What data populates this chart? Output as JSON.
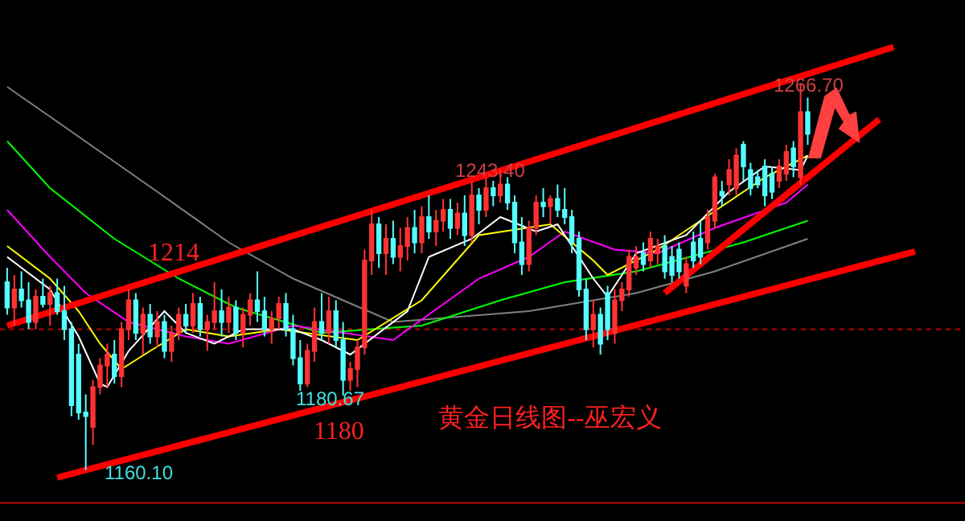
{
  "chart_data": {
    "type": "candlestick",
    "title": "黄金日线图--巫宏义",
    "categories": [
      null,
      null,
      null,
      null,
      null,
      null,
      null,
      null,
      null,
      null,
      null,
      null,
      null,
      null,
      null,
      null,
      null,
      null,
      null,
      null,
      null,
      null,
      null,
      null,
      null,
      null,
      null,
      null,
      null,
      null,
      null,
      null,
      null,
      null,
      null,
      null,
      null,
      null,
      null,
      null,
      null,
      null,
      null,
      null,
      null,
      null,
      null,
      null,
      null,
      null,
      null,
      null,
      null,
      null,
      null,
      null,
      null,
      null,
      null,
      null,
      null,
      null,
      null,
      null,
      null,
      null,
      null,
      null,
      null,
      null,
      null,
      null,
      null,
      null,
      null,
      null,
      null,
      null,
      null,
      null,
      null,
      null,
      null,
      null,
      null,
      null,
      null,
      null,
      null,
      null,
      null,
      null,
      null,
      null,
      null,
      null,
      null,
      null,
      null,
      null,
      null,
      null,
      null,
      null,
      null,
      null,
      null,
      null,
      null,
      null,
      null,
      null,
      null,
      null,
      null,
      null,
      null,
      null,
      null,
      null,
      null,
      null,
      null,
      null,
      null,
      null,
      null,
      null
    ],
    "ohlc": [
      [
        1212,
        1216,
        1203,
        1205
      ],
      [
        1205,
        1214,
        1200,
        1210
      ],
      [
        1210,
        1215,
        1205,
        1207
      ],
      [
        1207,
        1212,
        1199,
        1201
      ],
      [
        1201,
        1210,
        1199,
        1208
      ],
      [
        1208,
        1213,
        1205,
        1206
      ],
      [
        1206,
        1211,
        1200,
        1209
      ],
      [
        1209,
        1213,
        1203,
        1204
      ],
      [
        1204,
        1211,
        1196,
        1199
      ],
      [
        1199,
        1201,
        1175,
        1178
      ],
      [
        1192,
        1195,
        1174,
        1176
      ],
      [
        1176,
        1181,
        1160.1,
        1175
      ],
      [
        1172,
        1185,
        1167,
        1183
      ],
      [
        1183,
        1191,
        1181,
        1189
      ],
      [
        1189,
        1195,
        1183,
        1192
      ],
      [
        1192,
        1196,
        1184,
        1186
      ],
      [
        1186,
        1201,
        1183,
        1199
      ],
      [
        1199,
        1210,
        1196,
        1207
      ],
      [
        1207,
        1209,
        1196,
        1198
      ],
      [
        1198,
        1205,
        1192,
        1203
      ],
      [
        1203,
        1206,
        1195,
        1197
      ],
      [
        1197,
        1204,
        1194,
        1201
      ],
      [
        1201,
        1203,
        1191,
        1193
      ],
      [
        1193,
        1200,
        1190,
        1198
      ],
      [
        1198,
        1205,
        1196,
        1203
      ],
      [
        1203,
        1206,
        1198,
        1200
      ],
      [
        1200,
        1209,
        1198,
        1206
      ],
      [
        1206,
        1208,
        1197,
        1199
      ],
      [
        1199,
        1203,
        1193,
        1201
      ],
      [
        1201,
        1212,
        1199,
        1204
      ],
      [
        1204,
        1210,
        1197,
        1201
      ],
      [
        1201,
        1208,
        1198,
        1205
      ],
      [
        1205,
        1207,
        1196,
        1198
      ],
      [
        1198,
        1205,
        1194,
        1203
      ],
      [
        1203,
        1209,
        1200,
        1207
      ],
      [
        1207,
        1215,
        1201,
        1204
      ],
      [
        1204,
        1208,
        1197,
        1199
      ],
      [
        1199,
        1204,
        1195,
        1202
      ],
      [
        1202,
        1208,
        1199,
        1206
      ],
      [
        1206,
        1209,
        1197,
        1199
      ],
      [
        1199,
        1203,
        1189,
        1191
      ],
      [
        1191,
        1196,
        1182,
        1184
      ],
      [
        1184,
        1195,
        1183,
        1193
      ],
      [
        1193,
        1205,
        1190,
        1201
      ],
      [
        1201,
        1209,
        1196,
        1198
      ],
      [
        1198,
        1208,
        1195,
        1204
      ],
      [
        1204,
        1207,
        1194,
        1196
      ],
      [
        1196,
        1201,
        1180.67,
        1185
      ],
      [
        1185,
        1190,
        1182,
        1188
      ],
      [
        1188,
        1196,
        1183,
        1194
      ],
      [
        1194,
        1221,
        1192,
        1218
      ],
      [
        1218,
        1232,
        1214,
        1228
      ],
      [
        1228,
        1230,
        1216,
        1220
      ],
      [
        1220,
        1228,
        1214,
        1224
      ],
      [
        1224,
        1229,
        1217,
        1219
      ],
      [
        1219,
        1227,
        1215,
        1222
      ],
      [
        1222,
        1230,
        1218,
        1227
      ],
      [
        1227,
        1232,
        1220,
        1223
      ],
      [
        1223,
        1233,
        1220,
        1230
      ],
      [
        1230,
        1236,
        1224,
        1226
      ],
      [
        1226,
        1232,
        1222,
        1229
      ],
      [
        1229,
        1235,
        1226,
        1232
      ],
      [
        1232,
        1235,
        1224,
        1227
      ],
      [
        1227,
        1234,
        1225,
        1231
      ],
      [
        1231,
        1236,
        1222,
        1225
      ],
      [
        1225,
        1240,
        1223,
        1236
      ],
      [
        1236,
        1238,
        1228,
        1232
      ],
      [
        1232,
        1241,
        1230,
        1238
      ],
      [
        1238,
        1240,
        1233,
        1236
      ],
      [
        1236,
        1243.4,
        1234,
        1239
      ],
      [
        1239,
        1241,
        1232,
        1234
      ],
      [
        1234,
        1236,
        1220,
        1223
      ],
      [
        1223,
        1230,
        1214,
        1217
      ],
      [
        1217,
        1229,
        1215,
        1227
      ],
      [
        1227,
        1236,
        1225,
        1234
      ],
      [
        1234,
        1238,
        1230,
        1233
      ],
      [
        1233,
        1236,
        1228,
        1235
      ],
      [
        1235,
        1239,
        1230,
        1232
      ],
      [
        1232,
        1238,
        1228,
        1230
      ],
      [
        1230,
        1232,
        1220,
        1223
      ],
      [
        1224,
        1226,
        1208,
        1210
      ],
      [
        1210,
        1213,
        1196,
        1199
      ],
      [
        1199,
        1207,
        1194,
        1203
      ],
      [
        1203,
        1205,
        1192,
        1195
      ],
      [
        1209,
        1211,
        1196,
        1199
      ],
      [
        1198,
        1210,
        1195,
        1207
      ],
      [
        1207,
        1212,
        1204,
        1210
      ],
      [
        1210,
        1221,
        1208,
        1219
      ],
      [
        1216,
        1222,
        1214,
        1219
      ],
      [
        1220,
        1223,
        1215,
        1217
      ],
      [
        1218,
        1226,
        1216,
        1224
      ],
      [
        1220,
        1224,
        1217,
        1222
      ],
      [
        1222,
        1225,
        1213,
        1215
      ],
      [
        1219,
        1222,
        1212,
        1214
      ],
      [
        1221,
        1223,
        1213,
        1215
      ],
      [
        1211,
        1219,
        1209,
        1217
      ],
      [
        1223,
        1226,
        1216,
        1218
      ],
      [
        1224,
        1229,
        1217,
        1219
      ],
      [
        1223,
        1232,
        1221,
        1230
      ],
      [
        1229,
        1242,
        1227,
        1241
      ],
      [
        1237,
        1240,
        1233,
        1236
      ],
      [
        1239,
        1246,
        1236,
        1243
      ],
      [
        1238,
        1249,
        1236,
        1247
      ],
      [
        1250,
        1251,
        1240,
        1244
      ],
      [
        1243,
        1245,
        1236,
        1238
      ],
      [
        1241,
        1243,
        1238,
        1239
      ],
      [
        1244,
        1246,
        1233,
        1236
      ],
      [
        1242,
        1244,
        1235,
        1237
      ],
      [
        1240,
        1246,
        1238,
        1244
      ],
      [
        1242,
        1250,
        1240,
        1248
      ],
      [
        1249,
        1251,
        1241,
        1244
      ],
      [
        1241,
        1266.7,
        1239,
        1259
      ],
      [
        1259,
        1263,
        1250,
        1253
      ],
      null,
      null,
      null,
      null,
      null,
      null,
      null,
      null,
      null,
      null,
      null,
      null,
      null,
      null,
      null
    ],
    "series": [
      {
        "type": "line",
        "color": "#808080",
        "values": [
          1266,
          null,
          null,
          null,
          null,
          null,
          null,
          null,
          1255,
          null,
          null,
          null,
          null,
          null,
          null,
          null,
          null,
          null,
          null,
          null,
          null,
          1237,
          null,
          null,
          null,
          null,
          null,
          null,
          null,
          null,
          null,
          1223,
          null,
          null,
          null,
          null,
          null,
          null,
          null,
          null,
          1213,
          null,
          null,
          null,
          null,
          null,
          null,
          null,
          null,
          null,
          null,
          null,
          null,
          null,
          1201,
          null,
          null,
          null,
          null,
          null,
          null,
          null,
          null,
          null,
          null,
          null,
          null,
          null,
          null,
          null,
          null,
          null,
          null,
          1204,
          null,
          null,
          null,
          null,
          null,
          1206,
          null,
          null,
          null,
          null,
          null,
          null,
          null,
          null,
          1209,
          null,
          null,
          null,
          null,
          null,
          null,
          null,
          null,
          null,
          null,
          1215,
          null,
          null,
          null,
          null,
          null,
          null,
          null,
          null,
          null,
          null,
          null,
          null,
          1224,
          null,
          null,
          null,
          null,
          null,
          null,
          null,
          null,
          null,
          null,
          null,
          null,
          null,
          null,
          null
        ]
      },
      {
        "type": "line",
        "color": "#00ff00",
        "values": [
          1251,
          null,
          null,
          null,
          null,
          null,
          1238,
          null,
          null,
          null,
          null,
          null,
          null,
          null,
          null,
          1224,
          null,
          null,
          null,
          null,
          null,
          null,
          null,
          null,
          1213,
          null,
          null,
          null,
          null,
          null,
          null,
          null,
          1205,
          null,
          null,
          null,
          null,
          null,
          null,
          null,
          null,
          null,
          null,
          null,
          1198,
          null,
          null,
          null,
          null,
          null,
          null,
          null,
          null,
          null,
          null,
          null,
          null,
          null,
          1200,
          null,
          null,
          null,
          null,
          null,
          null,
          null,
          null,
          null,
          null,
          1207,
          null,
          null,
          null,
          null,
          null,
          null,
          null,
          null,
          1212,
          null,
          null,
          null,
          null,
          null,
          null,
          null,
          null,
          null,
          1215,
          null,
          null,
          null,
          null,
          null,
          null,
          null,
          null,
          null,
          null,
          null,
          null,
          null,
          null,
          1223,
          null,
          null,
          null,
          null,
          null,
          null,
          null,
          null,
          1229,
          null,
          null,
          null,
          null,
          null,
          null,
          null,
          null,
          null,
          null,
          null,
          null,
          null,
          null,
          null
        ]
      },
      {
        "type": "line",
        "color": "#ff00ff",
        "values": [
          1232,
          null,
          null,
          null,
          null,
          null,
          1219,
          null,
          null,
          null,
          null,
          1209,
          null,
          null,
          null,
          null,
          null,
          1201,
          null,
          null,
          null,
          null,
          null,
          null,
          null,
          1197,
          null,
          null,
          null,
          null,
          null,
          1195,
          null,
          null,
          null,
          null,
          null,
          null,
          null,
          null,
          1200,
          null,
          null,
          null,
          null,
          null,
          null,
          null,
          null,
          null,
          null,
          null,
          null,
          null,
          1196,
          null,
          null,
          null,
          null,
          null,
          null,
          null,
          null,
          null,
          null,
          null,
          1213,
          null,
          null,
          null,
          null,
          null,
          null,
          1219,
          null,
          null,
          null,
          null,
          1226,
          null,
          null,
          null,
          null,
          null,
          null,
          1221,
          null,
          null,
          null,
          null,
          null,
          1220,
          null,
          null,
          null,
          null,
          null,
          null,
          null,
          1227,
          null,
          null,
          null,
          null,
          null,
          null,
          null,
          null,
          null,
          1234,
          null,
          null,
          1239,
          null,
          null,
          null,
          null,
          null,
          null,
          null,
          null,
          null,
          null,
          null,
          null,
          null,
          null,
          null
        ]
      },
      {
        "type": "line",
        "color": "#ffff00",
        "values": [
          1222,
          null,
          null,
          null,
          null,
          null,
          1213,
          null,
          null,
          null,
          1204,
          null,
          null,
          1195,
          null,
          null,
          1188,
          null,
          null,
          null,
          1193,
          null,
          null,
          null,
          null,
          1199,
          null,
          null,
          null,
          null,
          null,
          1197,
          null,
          null,
          null,
          null,
          null,
          null,
          1199,
          null,
          null,
          null,
          null,
          null,
          null,
          null,
          null,
          null,
          null,
          1196,
          null,
          null,
          null,
          null,
          null,
          null,
          null,
          null,
          1207,
          null,
          null,
          null,
          null,
          null,
          null,
          null,
          1225,
          null,
          null,
          null,
          null,
          null,
          null,
          null,
          null,
          null,
          1228,
          null,
          null,
          null,
          null,
          null,
          1218,
          null,
          1214,
          null,
          null,
          null,
          null,
          null,
          null,
          1221,
          null,
          null,
          null,
          null,
          null,
          null,
          null,
          null,
          1233,
          null,
          null,
          null,
          null,
          null,
          1241,
          null,
          null,
          null,
          null,
          null,
          1247,
          null,
          null,
          null,
          null,
          null,
          null,
          null,
          null,
          null,
          null,
          null,
          null,
          null,
          null,
          null
        ]
      },
      {
        "type": "line",
        "color": "#ffffff",
        "values": [
          1219,
          null,
          null,
          null,
          null,
          null,
          1210,
          null,
          null,
          null,
          1197,
          null,
          null,
          1184,
          1183,
          null,
          null,
          1193,
          null,
          null,
          null,
          null,
          1204,
          null,
          null,
          1198,
          null,
          null,
          null,
          1195,
          null,
          null,
          null,
          1199,
          null,
          null,
          null,
          null,
          null,
          null,
          1199,
          null,
          null,
          null,
          1196,
          null,
          null,
          null,
          1192,
          null,
          null,
          null,
          null,
          null,
          null,
          null,
          1204,
          null,
          null,
          1219,
          null,
          null,
          null,
          null,
          null,
          1224,
          null,
          null,
          null,
          1230,
          null,
          null,
          null,
          null,
          1226,
          null,
          null,
          1228,
          null,
          null,
          null,
          null,
          1213,
          null,
          1208,
          null,
          null,
          null,
          1220,
          null,
          null,
          null,
          null,
          null,
          null,
          1225,
          null,
          null,
          null,
          null,
          null,
          1237,
          null,
          null,
          null,
          null,
          1244,
          null,
          null,
          null,
          null,
          1243,
          1247,
          null,
          null,
          null,
          null,
          null,
          null,
          null,
          null,
          null,
          null,
          null,
          null,
          null,
          null,
          null
        ]
      },
      {
        "type": "line",
        "color": "#ff0000",
        "values": [
          1200,
          null,
          null,
          null,
          null,
          null,
          null,
          null,
          null,
          null,
          null,
          null,
          null,
          null,
          null,
          null,
          null,
          null,
          null,
          null,
          null,
          null,
          null,
          null,
          null,
          null,
          null,
          null,
          null,
          null,
          null,
          null,
          null,
          null,
          null,
          null,
          null,
          null,
          null,
          null,
          null,
          null,
          null,
          null,
          null,
          null,
          null,
          null,
          null,
          null,
          null,
          null,
          null,
          null,
          null,
          null,
          null,
          null,
          null,
          null,
          null,
          null,
          null,
          null,
          null,
          null,
          null,
          null,
          null,
          null,
          null,
          null,
          null,
          null,
          null,
          null,
          null,
          null,
          null,
          null,
          null,
          null,
          null,
          null,
          null,
          null,
          null,
          null,
          null,
          null,
          null,
          null,
          null,
          null,
          null,
          null,
          null,
          null,
          null,
          null,
          null,
          null,
          null,
          null,
          null,
          null,
          null,
          null,
          null,
          null,
          null,
          null,
          null,
          null,
          null,
          null,
          null,
          null,
          null,
          null,
          null,
          null,
          null,
          null,
          1277,
          null,
          null,
          null
        ]
      },
      {
        "type": "line",
        "color": "#ff0000",
        "values": [
          null,
          null,
          null,
          null,
          null,
          null,
          null,
          1158,
          null,
          null,
          null,
          null,
          null,
          null,
          null,
          null,
          null,
          null,
          null,
          null,
          null,
          null,
          null,
          null,
          null,
          null,
          null,
          null,
          null,
          null,
          null,
          null,
          null,
          null,
          null,
          null,
          null,
          null,
          null,
          null,
          null,
          null,
          null,
          null,
          null,
          null,
          null,
          null,
          null,
          null,
          null,
          null,
          null,
          null,
          null,
          null,
          null,
          null,
          null,
          null,
          null,
          null,
          null,
          null,
          null,
          null,
          null,
          null,
          null,
          null,
          null,
          null,
          null,
          null,
          null,
          null,
          null,
          null,
          null,
          null,
          null,
          null,
          null,
          null,
          null,
          null,
          null,
          null,
          null,
          null,
          null,
          null,
          null,
          null,
          null,
          null,
          null,
          null,
          null,
          null,
          null,
          null,
          null,
          null,
          null,
          null,
          null,
          null,
          null,
          null,
          null,
          null,
          null,
          null,
          null,
          null,
          null,
          null,
          null,
          null,
          null,
          null,
          null,
          null,
          null,
          null,
          null,
          1220.5
        ]
      },
      {
        "type": "line",
        "color": "#ff0000",
        "values": [
          null,
          null,
          null,
          null,
          null,
          null,
          null,
          null,
          null,
          null,
          null,
          null,
          null,
          null,
          null,
          null,
          null,
          null,
          null,
          null,
          null,
          null,
          null,
          null,
          null,
          null,
          null,
          null,
          null,
          null,
          null,
          null,
          null,
          null,
          null,
          null,
          null,
          null,
          null,
          null,
          null,
          null,
          null,
          null,
          null,
          null,
          null,
          null,
          null,
          null,
          null,
          null,
          null,
          null,
          null,
          null,
          null,
          null,
          null,
          null,
          null,
          null,
          null,
          null,
          null,
          null,
          null,
          null,
          null,
          null,
          null,
          null,
          null,
          null,
          null,
          null,
          null,
          null,
          null,
          null,
          null,
          null,
          null,
          null,
          null,
          null,
          null,
          null,
          null,
          null,
          null,
          null,
          1209,
          null,
          null,
          null,
          null,
          null,
          null,
          null,
          null,
          null,
          null,
          null,
          null,
          null,
          null,
          null,
          null,
          null,
          null,
          null,
          null,
          null,
          null,
          null,
          null,
          null,
          null,
          null,
          null,
          null,
          1257,
          null,
          null,
          null,
          null,
          null
        ]
      }
    ],
    "annotations": [
      "1266.70",
      "1243.40",
      "1180.67",
      "1160.10",
      "1214",
      "1180"
    ],
    "ref_lines": [
      {
        "axis": "y",
        "value": 1199,
        "color": "#c00000",
        "line_style": "dotted"
      },
      {
        "axis": "y",
        "value": 1151,
        "color": "#c00000",
        "line_style": "solid"
      }
    ],
    "ylim": [
      1146,
      1290
    ],
    "tick_labels": false,
    "grid": false
  }
}
